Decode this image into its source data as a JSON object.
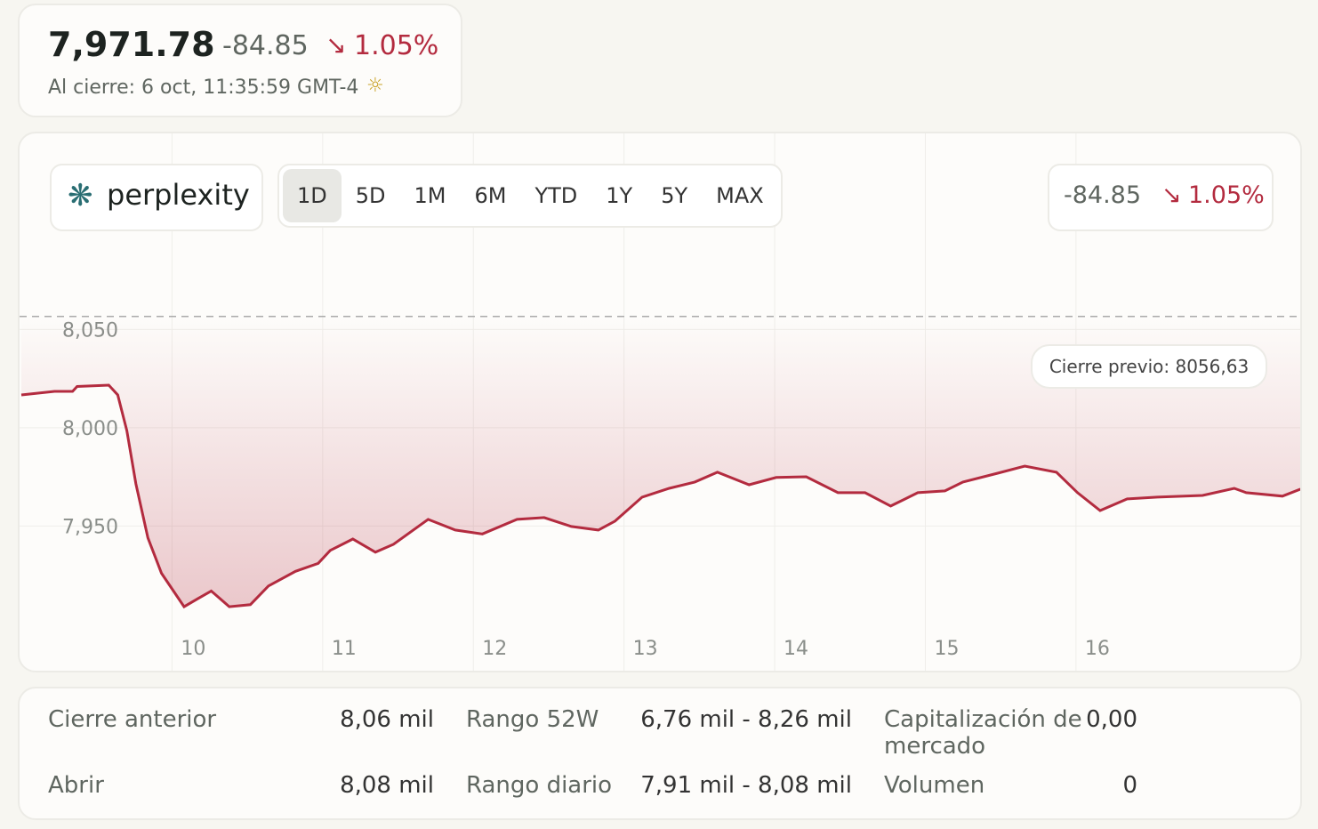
{
  "header": {
    "price": "7,971.78",
    "change": "-84.85",
    "change_pct": "1.05%",
    "time": "Al cierre: 6 oct, 11:35:59 GMT-4"
  },
  "brand": "perplexity",
  "tabs": [
    "1D",
    "5D",
    "1M",
    "6M",
    "YTD",
    "1Y",
    "5Y",
    "MAX"
  ],
  "chart_data": {
    "type": "line",
    "x": [
      9.0,
      9.22,
      9.34,
      9.37,
      9.58,
      9.64,
      9.7,
      9.76,
      9.84,
      9.93,
      10.08,
      10.17,
      10.26,
      10.38,
      10.52,
      10.64,
      10.82,
      10.97,
      11.05,
      11.2,
      11.35,
      11.47,
      11.7,
      11.88,
      12.06,
      12.29,
      12.47,
      12.65,
      12.83,
      12.94,
      13.12,
      13.3,
      13.47,
      13.62,
      13.83,
      14.01,
      14.21,
      14.42,
      14.6,
      14.77,
      14.95,
      15.13,
      15.25,
      15.48,
      15.66,
      15.87,
      16.01,
      16.16,
      16.34,
      16.54,
      16.84,
      17.05,
      17.13,
      17.37,
      17.49
    ],
    "values": [
      8016.7,
      8018.5,
      8018.5,
      8021,
      8021.7,
      8016.7,
      7998.6,
      7971.5,
      7944,
      7926,
      7909,
      7913,
      7917,
      7909,
      7910,
      7919.5,
      7927,
      7931,
      7937.6,
      7943.4,
      7936.7,
      7940.7,
      7953.4,
      7948,
      7946,
      7953.4,
      7954.3,
      7949.8,
      7948,
      7952.5,
      7964.7,
      7969.2,
      7972.4,
      7977.4,
      7971,
      7974.7,
      7975.1,
      7967,
      7967,
      7960.2,
      7967,
      7967.9,
      7972.4,
      7976.9,
      7980.5,
      7977.4,
      7967,
      7957.9,
      7963.8,
      7964.7,
      7965.6,
      7969.2,
      7967,
      7965.2,
      7968.8
    ],
    "color": "#b32b3f",
    "xlim": [
      9.0,
      17.5
    ],
    "xticks": [
      10,
      11,
      12,
      13,
      14,
      15,
      16
    ],
    "ylim": [
      7895,
      8090
    ],
    "yticks": [
      {
        "value": 7950,
        "label": "7,950"
      },
      {
        "value": 8000,
        "label": "8,000"
      },
      {
        "value": 8050,
        "label": "8,050"
      }
    ],
    "reference": {
      "value": 8056.63,
      "label": "Cierre previo: 8056,63"
    }
  },
  "stats": {
    "rows": [
      [
        "Cierre anterior",
        "8,06 mil",
        "Rango 52W",
        "6,76 mil - 8,26 mil",
        "Capitalización de mercado",
        "0,00"
      ],
      [
        "Abrir",
        "8,08 mil",
        "Rango diario",
        "7,91 mil - 8,08 mil",
        "Volumen",
        "0"
      ]
    ]
  }
}
